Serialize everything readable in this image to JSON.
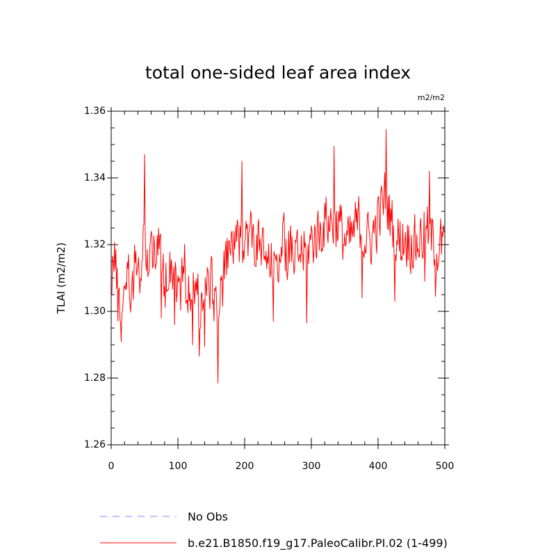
{
  "chart_data": {
    "type": "line",
    "title": "total one-sided leaf area index",
    "units": "m2/m2",
    "ylabel": "TLAI  (m2/m2)",
    "xlabel": "",
    "xlim": [
      0,
      500
    ],
    "ylim": [
      1.26,
      1.36
    ],
    "xticks": [
      0,
      100,
      200,
      300,
      400,
      500
    ],
    "xtick_labels": [
      "0",
      "100",
      "200",
      "300",
      "400",
      "500"
    ],
    "yticks": [
      1.26,
      1.28,
      1.3,
      1.32,
      1.34,
      1.36
    ],
    "ytick_labels": [
      "1.26",
      "1.28",
      "1.30",
      "1.32",
      "1.34",
      "1.36"
    ],
    "series": [
      {
        "name": "b.e21.B1850.f19_g17.PaleoCalibr.PI.02 (1-499)",
        "color": "#ff0000",
        "x_start": 1,
        "x_step": 1,
        "y_anchors": [
          [
            1,
            1.313
          ],
          [
            5,
            1.318
          ],
          [
            10,
            1.303
          ],
          [
            16,
            1.298
          ],
          [
            22,
            1.314
          ],
          [
            30,
            1.306
          ],
          [
            38,
            1.318
          ],
          [
            45,
            1.307
          ],
          [
            50,
            1.325
          ],
          [
            55,
            1.314
          ],
          [
            60,
            1.319
          ],
          [
            65,
            1.321
          ],
          [
            72,
            1.318
          ],
          [
            80,
            1.308
          ],
          [
            88,
            1.316
          ],
          [
            95,
            1.312
          ],
          [
            102,
            1.305
          ],
          [
            110,
            1.313
          ],
          [
            118,
            1.302
          ],
          [
            126,
            1.308
          ],
          [
            133,
            1.302
          ],
          [
            140,
            1.306
          ],
          [
            148,
            1.309
          ],
          [
            155,
            1.304
          ],
          [
            162,
            1.3
          ],
          [
            170,
            1.312
          ],
          [
            178,
            1.318
          ],
          [
            185,
            1.322
          ],
          [
            192,
            1.318
          ],
          [
            200,
            1.325
          ],
          [
            208,
            1.323
          ],
          [
            216,
            1.321
          ],
          [
            225,
            1.318
          ],
          [
            235,
            1.314
          ],
          [
            244,
            1.312
          ],
          [
            252,
            1.319
          ],
          [
            260,
            1.32
          ],
          [
            268,
            1.317
          ],
          [
            276,
            1.315
          ],
          [
            284,
            1.318
          ],
          [
            292,
            1.317
          ],
          [
            300,
            1.321
          ],
          [
            308,
            1.323
          ],
          [
            316,
            1.325
          ],
          [
            324,
            1.328
          ],
          [
            332,
            1.326
          ],
          [
            340,
            1.327
          ],
          [
            348,
            1.322
          ],
          [
            356,
            1.32
          ],
          [
            364,
            1.324
          ],
          [
            372,
            1.327
          ],
          [
            380,
            1.322
          ],
          [
            388,
            1.321
          ],
          [
            396,
            1.325
          ],
          [
            404,
            1.33
          ],
          [
            410,
            1.334
          ],
          [
            416,
            1.33
          ],
          [
            424,
            1.324
          ],
          [
            432,
            1.321
          ],
          [
            440,
            1.322
          ],
          [
            448,
            1.321
          ],
          [
            456,
            1.32
          ],
          [
            464,
            1.322
          ],
          [
            472,
            1.324
          ],
          [
            480,
            1.322
          ],
          [
            488,
            1.318
          ],
          [
            494,
            1.32
          ],
          [
            499,
            1.318
          ]
        ],
        "y_extremes": [
          [
            50,
            1.347
          ],
          [
            60,
            1.324
          ],
          [
            75,
            1.298
          ],
          [
            95,
            1.296
          ],
          [
            122,
            1.29
          ],
          [
            132,
            1.2865
          ],
          [
            140,
            1.2895
          ],
          [
            160,
            1.2785
          ],
          [
            196,
            1.345
          ],
          [
            243,
            1.297
          ],
          [
            293,
            1.2965
          ],
          [
            334,
            1.3495
          ],
          [
            376,
            1.304
          ],
          [
            412,
            1.3545
          ],
          [
            425,
            1.303
          ],
          [
            470,
            1.309
          ],
          [
            477,
            1.342
          ],
          [
            486,
            1.3045
          ]
        ]
      }
    ],
    "legend": [
      {
        "label": "No Obs",
        "color": "#8080ff",
        "style": "dashed"
      },
      {
        "label": "b.e21.B1850.f19_g17.PaleoCalibr.PI.02 (1-499)",
        "color": "#ff0000",
        "style": "solid"
      }
    ],
    "legend_position": "bottom-left"
  }
}
